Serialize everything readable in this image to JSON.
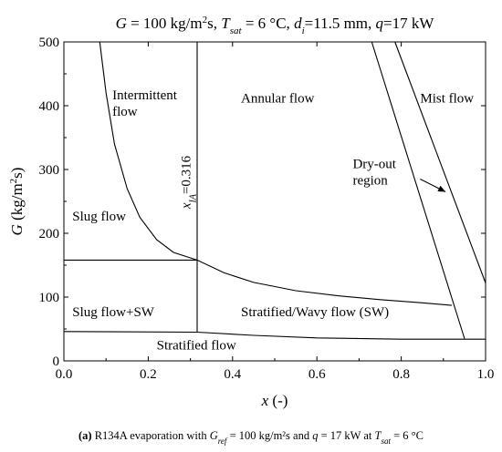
{
  "chart_data": {
    "type": "line",
    "title": {
      "g": "G",
      "g_rest": " = 100 kg/m",
      "g_sup": "2",
      "g_unit": "s, ",
      "t": "T",
      "t_sub": "sat",
      "t_rest": " = 6 °C, ",
      "d": "d",
      "d_sub": "i",
      "d_rest": "=11.5 mm, ",
      "q": "q",
      "q_rest": "=17 kW"
    },
    "xlabel": {
      "sym": "x",
      "unit": " (-)"
    },
    "ylabel": {
      "sym": "G",
      "unit": " (kg/m",
      "sup": "2",
      "end": "s)"
    },
    "xlim": [
      0,
      1
    ],
    "ylim": [
      0,
      500
    ],
    "xticks": [
      "0.0",
      "0.2",
      "0.4",
      "0.6",
      "0.8",
      "1.0"
    ],
    "yticks": [
      "0",
      "100",
      "200",
      "300",
      "400",
      "500"
    ],
    "grid": false,
    "series": [
      {
        "x": [
          0.085,
          0.1,
          0.12,
          0.15,
          0.18,
          0.22,
          0.26,
          0.316,
          0.38,
          0.45,
          0.55,
          0.65,
          0.75,
          0.85,
          0.92
        ],
        "y": [
          500,
          420,
          340,
          270,
          225,
          190,
          170,
          158,
          138,
          123,
          110,
          102,
          96,
          91,
          87
        ]
      },
      {
        "x": [
          0,
          0.316
        ],
        "y": [
          158,
          158
        ]
      },
      {
        "x": [
          0.316,
          0.316
        ],
        "y": [
          45,
          500
        ]
      },
      {
        "x": [
          0,
          0.316,
          0.45,
          0.6,
          0.8,
          1.0
        ],
        "y": [
          46,
          45,
          40,
          36,
          34,
          34
        ]
      },
      {
        "x": [
          0.73,
          0.95
        ],
        "y": [
          500,
          35
        ]
      },
      {
        "x": [
          0.785,
          1.0
        ],
        "y": [
          500,
          122
        ]
      }
    ],
    "regions": [
      {
        "id": "intermittent",
        "lines": [
          "Intermittent",
          "flow"
        ],
        "x": 0.115,
        "y": 410
      },
      {
        "id": "annular",
        "lines": [
          "Annular flow"
        ],
        "x": 0.42,
        "y": 405
      },
      {
        "id": "mist",
        "lines": [
          "Mist flow"
        ],
        "x": 0.845,
        "y": 405
      },
      {
        "id": "dryout",
        "lines": [
          "Dry-out",
          "region"
        ],
        "x": 0.685,
        "y": 302
      },
      {
        "id": "slug",
        "lines": [
          "Slug flow"
        ],
        "x": 0.02,
        "y": 220
      },
      {
        "id": "slug-sw",
        "lines": [
          "Slug flow+SW"
        ],
        "x": 0.02,
        "y": 70
      },
      {
        "id": "stratified-wavy",
        "lines": [
          "Stratified/Wavy flow (SW)"
        ],
        "x": 0.42,
        "y": 70
      },
      {
        "id": "stratified",
        "lines": [
          "Stratified flow"
        ],
        "x": 0.22,
        "y": 18
      }
    ],
    "annotations": [
      {
        "id": "x-ia",
        "sym": "x",
        "sub": "IA",
        "rest": "=0.316",
        "x": 0.3,
        "y": 280
      }
    ],
    "arrow": {
      "from": [
        0.845,
        285
      ],
      "to": [
        0.905,
        265
      ]
    }
  },
  "caption": {
    "label": "(a)",
    "text1": " R134A evaporation with ",
    "g": "G",
    "g_sub": "ref",
    "text2": " = 100 kg/m²s and ",
    "q": "q",
    "text3": " = 17 kW at ",
    "t": "T",
    "t_sub": "sat",
    "text4": " = 6 °C"
  }
}
